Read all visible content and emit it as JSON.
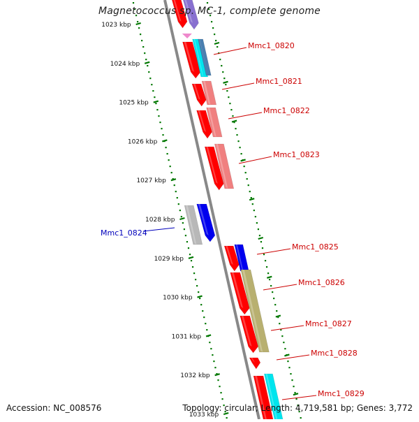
{
  "title": "Magnetococcus sp. MC-1, complete genome",
  "accession": "Accession: NC_008576",
  "topology": "Topology: circular; Length: 4,719,581 bp; Genes: 3,772",
  "ruler": {
    "labels": [
      "1023 kbp",
      "1024 kbp",
      "1025 kbp",
      "1026 kbp",
      "1027 kbp",
      "1028 kbp",
      "1029 kbp",
      "1030 kbp",
      "1031 kbp",
      "1032 kbp",
      "1033 kbp"
    ]
  },
  "gene_labels": [
    {
      "name": "Mmc1_0820",
      "strand": "plus"
    },
    {
      "name": "Mmc1_0821",
      "strand": "plus"
    },
    {
      "name": "Mmc1_0822",
      "strand": "plus"
    },
    {
      "name": "Mmc1_0823",
      "strand": "plus"
    },
    {
      "name": "Mmc1_0824",
      "strand": "minus"
    },
    {
      "name": "Mmc1_0825",
      "strand": "plus"
    },
    {
      "name": "Mmc1_0826",
      "strand": "plus"
    },
    {
      "name": "Mmc1_0827",
      "strand": "plus"
    },
    {
      "name": "Mmc1_0828",
      "strand": "plus"
    },
    {
      "name": "Mmc1_0829",
      "strand": "plus"
    }
  ],
  "colors": {
    "plus_label": "#cc0000",
    "minus_label": "#0000bb",
    "gene_red": "#ff0000",
    "tick_green": "#007700",
    "axis_gray": "#888888",
    "blue": "#0000ee",
    "pink": "#f08080",
    "olive": "#b8b070",
    "cyan": "#00e5ee",
    "gray": "#b8b8b8",
    "lavender": "#8870d0",
    "steel": "#4a7fb0"
  }
}
